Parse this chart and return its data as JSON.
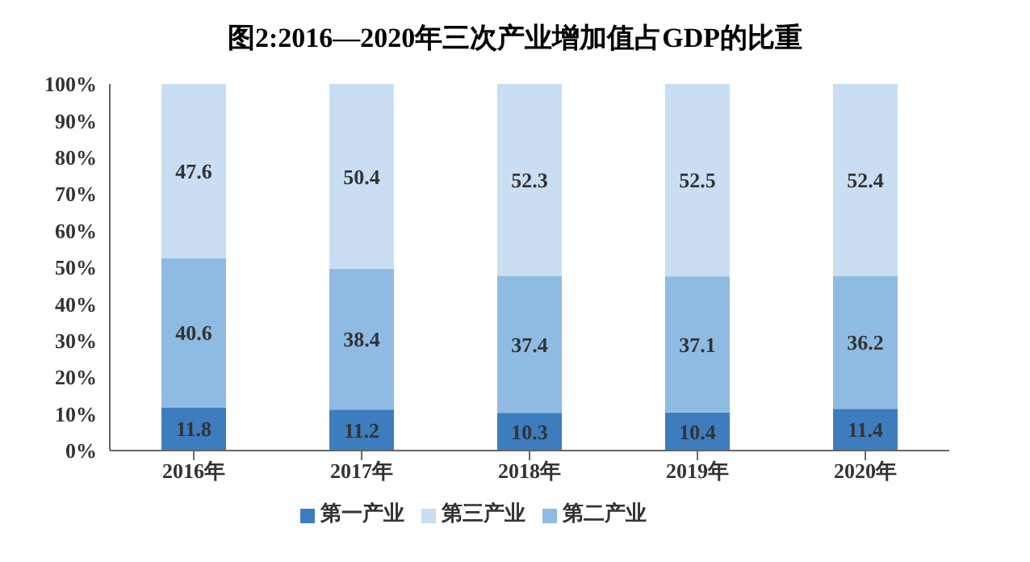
{
  "chart_data": {
    "type": "bar",
    "title": "图2:2016—2020年三次产业增加值占GDP的比重",
    "categories": [
      "2016年",
      "2017年",
      "2018年",
      "2019年",
      "2020年"
    ],
    "stacked": true,
    "data_labels": true,
    "legend": "bottom",
    "ylim": [
      0,
      100
    ],
    "yticks": [
      {
        "value": 0,
        "label": "0%"
      },
      {
        "value": 10,
        "label": "10%"
      },
      {
        "value": 20,
        "label": "20%"
      },
      {
        "value": 30,
        "label": "30%"
      },
      {
        "value": 40,
        "label": "40%"
      },
      {
        "value": 50,
        "label": "50%"
      },
      {
        "value": 60,
        "label": "60%"
      },
      {
        "value": 70,
        "label": "70%"
      },
      {
        "value": 80,
        "label": "80%"
      },
      {
        "value": 90,
        "label": "90%"
      },
      {
        "value": 100,
        "label": "100%"
      }
    ],
    "series": [
      {
        "name": "第一产业",
        "color": "#3d7dbf",
        "values": [
          11.8,
          11.2,
          10.3,
          10.4,
          11.4
        ]
      },
      {
        "name": "第二产业",
        "color": "#8fbbe3",
        "values": [
          40.6,
          38.4,
          37.4,
          37.1,
          36.2
        ]
      },
      {
        "name": "第三产业",
        "color": "#c9def2",
        "values": [
          47.6,
          50.4,
          52.3,
          52.5,
          52.4
        ]
      }
    ]
  }
}
